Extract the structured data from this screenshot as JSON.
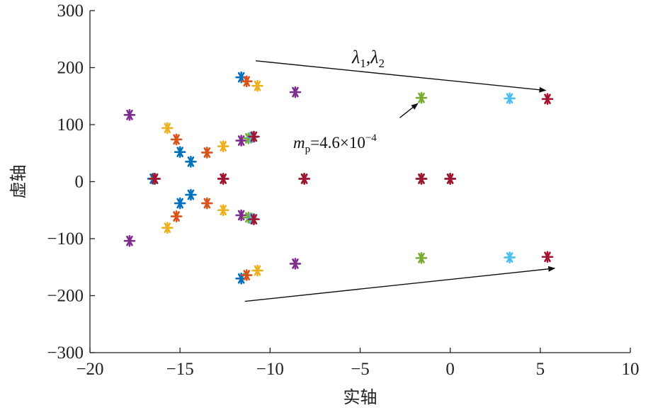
{
  "chart_data": {
    "type": "scatter",
    "title": "",
    "xlabel": "实轴",
    "ylabel": "虚轴",
    "xlim": [
      -20,
      10
    ],
    "ylim": [
      -300,
      300
    ],
    "xticks": [
      -20,
      -15,
      -10,
      -5,
      0,
      5,
      10
    ],
    "yticks": [
      -300,
      -200,
      -100,
      0,
      100,
      200,
      300
    ],
    "xtick_labels": [
      "−20",
      "−15",
      "−10",
      "−5",
      "0",
      "5",
      "10"
    ],
    "ytick_labels": [
      "−300",
      "−200",
      "−100",
      "0",
      "100",
      "200",
      "300"
    ],
    "grid": false,
    "legend": "none",
    "marker": "asterisk",
    "series": [
      {
        "color": "#0072BD",
        "points": [
          [
            -11.6,
            183
          ],
          [
            -11.6,
            -170
          ],
          [
            -15.0,
            52
          ],
          [
            -14.4,
            35
          ],
          [
            -15.0,
            -38
          ],
          [
            -14.4,
            -23
          ],
          [
            -16.5,
            5
          ],
          [
            -12.6,
            5
          ],
          [
            -8.1,
            5
          ],
          [
            -1.6,
            5
          ],
          [
            0.0,
            5
          ]
        ]
      },
      {
        "color": "#D95319",
        "points": [
          [
            -11.3,
            176
          ],
          [
            -11.3,
            -164
          ],
          [
            -15.2,
            74
          ],
          [
            -13.5,
            51
          ],
          [
            -15.2,
            -61
          ],
          [
            -13.5,
            -38
          ],
          [
            -16.4,
            5
          ],
          [
            -12.6,
            5
          ],
          [
            -8.1,
            5
          ],
          [
            -1.6,
            5
          ],
          [
            0.0,
            5
          ]
        ]
      },
      {
        "color": "#EDB120",
        "points": [
          [
            -10.7,
            168
          ],
          [
            -10.7,
            -156
          ],
          [
            -15.7,
            94
          ],
          [
            -12.6,
            62
          ],
          [
            -15.7,
            -81
          ],
          [
            -12.6,
            -50
          ],
          [
            -16.4,
            5
          ],
          [
            -12.6,
            5
          ],
          [
            -8.1,
            5
          ],
          [
            -1.6,
            5
          ],
          [
            0.0,
            5
          ]
        ]
      },
      {
        "color": "#7E2F8E",
        "points": [
          [
            -8.6,
            157
          ],
          [
            -8.6,
            -144
          ],
          [
            -17.8,
            117
          ],
          [
            -11.6,
            72
          ],
          [
            -17.8,
            -104
          ],
          [
            -11.6,
            -59
          ],
          [
            -16.4,
            5
          ],
          [
            -12.6,
            5
          ],
          [
            -8.1,
            5
          ],
          [
            -1.6,
            5
          ],
          [
            0.0,
            5
          ]
        ]
      },
      {
        "color": "#77AC30",
        "points": [
          [
            -1.6,
            147
          ],
          [
            -1.6,
            -134
          ],
          [
            -11.2,
            76
          ],
          [
            -11.2,
            -63
          ],
          [
            -16.4,
            5
          ],
          [
            -12.6,
            5
          ],
          [
            -8.1,
            5
          ],
          [
            -1.6,
            5
          ],
          [
            0.0,
            5
          ]
        ]
      },
      {
        "color": "#4DBEEE",
        "points": [
          [
            3.3,
            146
          ],
          [
            3.3,
            -133
          ],
          [
            -11.0,
            78
          ],
          [
            -11.0,
            -65
          ],
          [
            -16.4,
            5
          ],
          [
            -12.6,
            5
          ],
          [
            -8.1,
            5
          ],
          [
            -1.6,
            5
          ],
          [
            0.0,
            5
          ]
        ]
      },
      {
        "color": "#A2142F",
        "points": [
          [
            5.4,
            145
          ],
          [
            5.4,
            -132
          ],
          [
            -10.9,
            79
          ],
          [
            -10.9,
            -66
          ],
          [
            -16.4,
            5
          ],
          [
            -12.6,
            5
          ],
          [
            -8.1,
            5
          ],
          [
            -1.6,
            5
          ],
          [
            0.0,
            5
          ]
        ]
      }
    ],
    "annotations": {
      "lambda": {
        "text_main_1": "λ",
        "text_sub_1": "1",
        "text_sep": ",",
        "text_main_2": "λ",
        "text_sub_2": "2",
        "arrows": [
          {
            "from": [
              -10.8,
              212
            ],
            "to": [
              5.3,
              160
            ]
          },
          {
            "from": [
              -11.4,
              -210
            ],
            "to": [
              5.8,
              -152
            ]
          }
        ]
      },
      "mp": {
        "text_var": "m",
        "text_sub": "p",
        "text_val": "=4.6×10",
        "text_exp": "−4",
        "arrow": {
          "from": [
            -2.8,
            112
          ],
          "to": [
            -1.8,
            137
          ]
        }
      }
    }
  }
}
